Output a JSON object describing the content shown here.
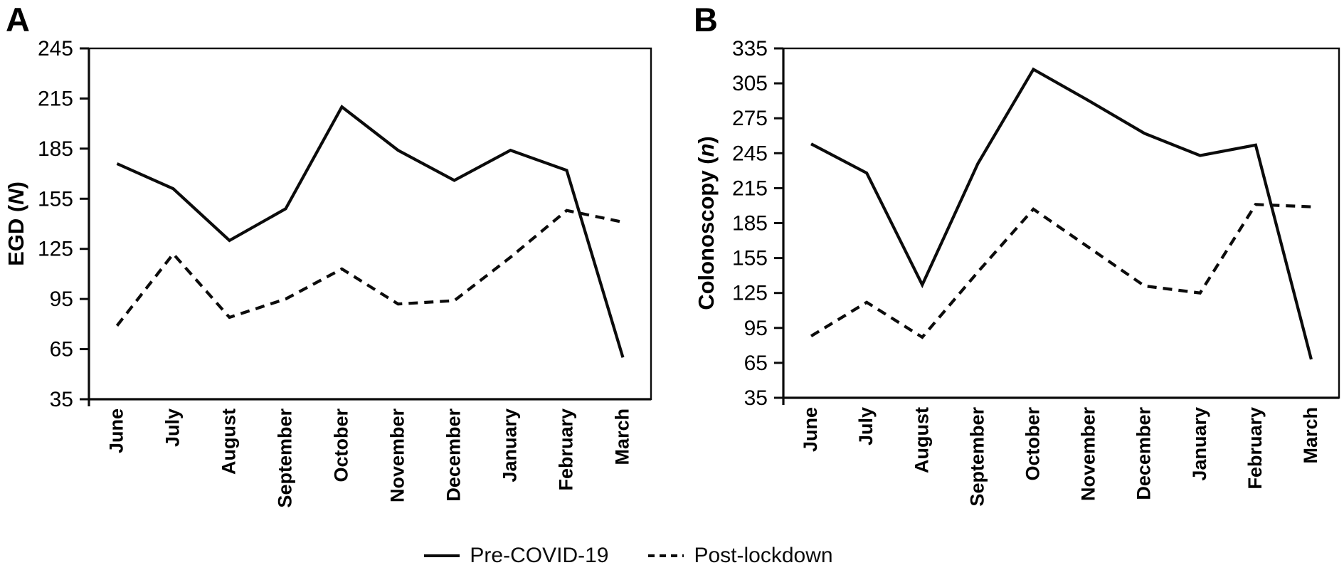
{
  "figure": {
    "background": "#ffffff",
    "line_color": "#0b0b0b",
    "text_color": "#000000"
  },
  "legend": {
    "items": [
      {
        "label": "Pre-COVID-19",
        "style": "solid"
      },
      {
        "label": "Post-lockdown",
        "style": "dashed"
      }
    ],
    "position": "bottom-center"
  },
  "chart_data": [
    {
      "type": "line",
      "panel": "A",
      "ylabel": {
        "prefix": "EGD (",
        "italic": "N",
        "suffix": ")"
      },
      "ylim": [
        35,
        245
      ],
      "ytick_step": 30,
      "yticks": [
        35,
        65,
        95,
        125,
        155,
        185,
        215,
        245
      ],
      "grid": false,
      "categories": [
        "June",
        "July",
        "August",
        "September",
        "October",
        "November",
        "December",
        "January",
        "February",
        "March"
      ],
      "series": [
        {
          "name": "Pre-COVID-19",
          "style": "solid",
          "values": [
            176,
            161,
            130,
            149,
            210,
            184,
            166,
            184,
            172,
            60
          ]
        },
        {
          "name": "Post-lockdown",
          "style": "dashed",
          "values": [
            79,
            122,
            84,
            95,
            113,
            92,
            94,
            120,
            148,
            141
          ]
        }
      ]
    },
    {
      "type": "line",
      "panel": "B",
      "ylabel": {
        "prefix": "Colonoscopy (",
        "italic": "n",
        "suffix": ")"
      },
      "ylim": [
        35,
        335
      ],
      "ytick_step": 30,
      "yticks": [
        35,
        65,
        95,
        125,
        155,
        185,
        215,
        245,
        275,
        305,
        335
      ],
      "grid": false,
      "categories": [
        "June",
        "July",
        "August",
        "September",
        "October",
        "November",
        "December",
        "January",
        "February",
        "March"
      ],
      "series": [
        {
          "name": "Pre-COVID-19",
          "style": "solid",
          "values": [
            253,
            228,
            132,
            236,
            317,
            290,
            262,
            243,
            252,
            68
          ]
        },
        {
          "name": "Post-lockdown",
          "style": "dashed",
          "values": [
            88,
            117,
            87,
            143,
            197,
            164,
            131,
            125,
            201,
            199
          ]
        }
      ]
    }
  ]
}
